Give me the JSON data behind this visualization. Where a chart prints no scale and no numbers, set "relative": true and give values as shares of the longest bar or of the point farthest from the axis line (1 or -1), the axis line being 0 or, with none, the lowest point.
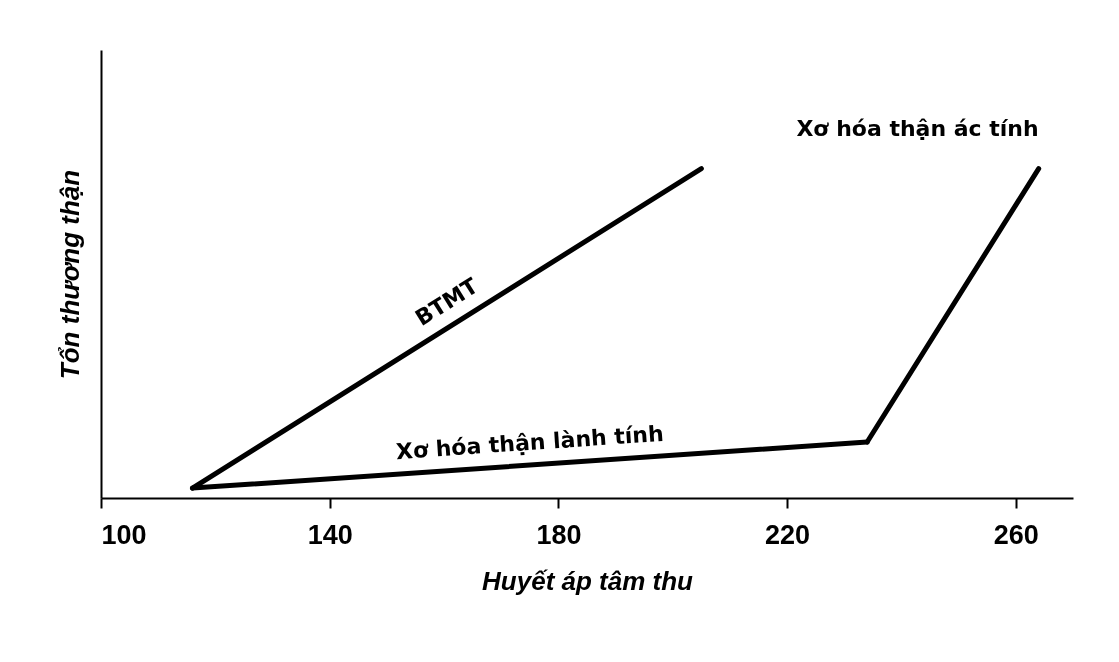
{
  "chart_data": {
    "type": "line",
    "xlabel": "Huyết áp tâm thu",
    "ylabel": "Tổn thương thận",
    "relative": true,
    "xlim": [
      100,
      270
    ],
    "xticks": [
      100,
      140,
      180,
      220,
      260
    ],
    "grid": false,
    "marker": "none",
    "line_style": "solid",
    "series": [
      {
        "name": "BTMT",
        "color": "#000000",
        "x": [
          116,
          205
        ],
        "values": [
          0.03,
          1
        ]
      },
      {
        "name": "Xơ hóa thận lành tính",
        "color": "#000000",
        "x": [
          116,
          234
        ],
        "values": [
          0.03,
          0.17
        ]
      },
      {
        "name": "Xơ hóa thận ác tính",
        "color": "#000000",
        "x": [
          234,
          264
        ],
        "values": [
          0.17,
          1
        ]
      }
    ]
  }
}
